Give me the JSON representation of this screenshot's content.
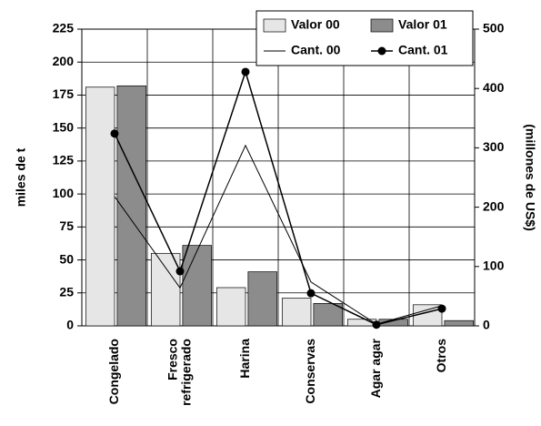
{
  "chart_data": {
    "type": "bar-line",
    "categories": [
      "Congelado",
      "Fresco\nrefrigerado",
      "Harina",
      "Conservas",
      "Agar agar",
      "Otros"
    ],
    "y_label": "miles de t",
    "y2_label": "(millones de US$)",
    "ylim": [
      0,
      225
    ],
    "yticks": [
      0,
      25,
      50,
      75,
      100,
      125,
      150,
      175,
      200,
      225
    ],
    "y2lim": [
      0,
      500
    ],
    "y2ticks": [
      0,
      100,
      200,
      300,
      400,
      500
    ],
    "grid": true,
    "legend": "top-right",
    "series": [
      {
        "name": "Valor 00",
        "kind": "bar",
        "color": "#e6e6e6",
        "values": [
          181,
          55,
          29,
          21,
          5,
          16
        ]
      },
      {
        "name": "Valor 01",
        "kind": "bar",
        "color": "#8c8c8c",
        "values": [
          182,
          61,
          41,
          17,
          5,
          4
        ]
      },
      {
        "name": "Cant. 00",
        "kind": "line",
        "axis": "y2",
        "color": "#000000",
        "marker": false,
        "values": [
          218,
          64,
          304,
          74,
          3,
          34
        ]
      },
      {
        "name": "Cant. 01",
        "kind": "line",
        "axis": "y2",
        "color": "#000000",
        "marker": true,
        "values": [
          324,
          92,
          428,
          55,
          2,
          29
        ]
      }
    ]
  }
}
